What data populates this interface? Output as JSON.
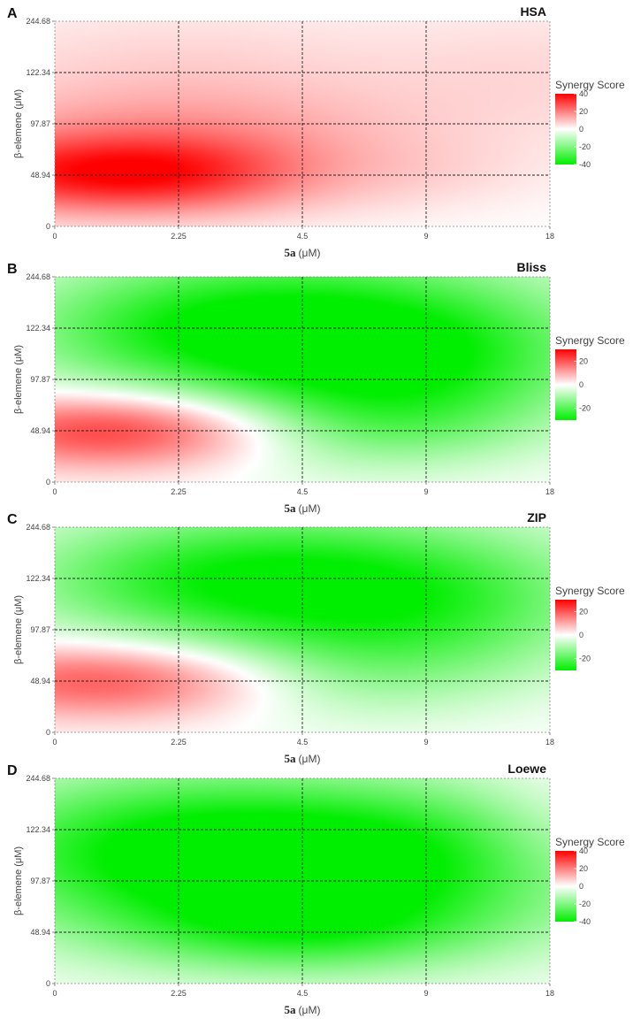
{
  "chart_data": [
    {
      "type": "heatmap",
      "panel_label": "A",
      "title": "HSA",
      "xlabel": "5a",
      "xlabel_unit": "(μM)",
      "ylabel": "β-elemene (μM)",
      "x_ticks": [
        "0",
        "2.25",
        "4.5",
        "9",
        "18"
      ],
      "y_ticks": [
        "0",
        "48.94",
        "97.87",
        "122.34",
        "244.68"
      ],
      "legend": {
        "title": "Synergy Score",
        "ticks": [
          "40",
          "20",
          "0",
          "-20",
          "-40"
        ],
        "range": [
          -40,
          40
        ],
        "colors": {
          "high": "#ff0000",
          "mid": "#ffffff",
          "low": "#00ee00"
        }
      },
      "grid": true,
      "peaks": [
        {
          "x": "2.25",
          "y": "48.94",
          "score": 34,
          "spread_x": 1.3,
          "spread_y": 0.55
        },
        {
          "x": "0",
          "y": "48.94",
          "score": 10,
          "spread_x": 1.0,
          "spread_y": 0.6
        },
        {
          "x": "2.25",
          "y": "122.34",
          "score": 7,
          "spread_x": 1.5,
          "spread_y": 1.0
        },
        {
          "x": "2.25",
          "y": "97.87",
          "score": 8,
          "spread_x": 1.5,
          "spread_y": 0.6
        },
        {
          "x": "18",
          "y": "122.34",
          "score": 5,
          "spread_x": 0.9,
          "spread_y": 1.0
        },
        {
          "x": "4.5",
          "y": "48.94",
          "score": -10,
          "spread_x": 0.7,
          "spread_y": 0.5
        }
      ]
    },
    {
      "type": "heatmap",
      "panel_label": "B",
      "title": "Bliss",
      "xlabel": "5a",
      "xlabel_unit": "(μM)",
      "ylabel": "β-elemene (μM)",
      "x_ticks": [
        "0",
        "2.25",
        "4.5",
        "9",
        "18"
      ],
      "y_ticks": [
        "0",
        "48.94",
        "97.87",
        "122.34",
        "244.68"
      ],
      "legend": {
        "title": "Synergy Score",
        "ticks": [
          "20",
          "0",
          "-20"
        ],
        "range": [
          -30,
          30
        ],
        "colors": {
          "high": "#ff0000",
          "mid": "#ffffff",
          "low": "#00ee00"
        }
      },
      "grid": true,
      "peaks": [
        {
          "x": "2.25",
          "y": "48.94",
          "score": 26,
          "spread_x": 1.0,
          "spread_y": 0.55
        },
        {
          "x": "0",
          "y": "48.94",
          "score": 8,
          "spread_x": 0.8,
          "spread_y": 0.5
        },
        {
          "x": "4.5",
          "y": "122.34",
          "score": -30,
          "spread_x": 1.5,
          "spread_y": 1.1
        },
        {
          "x": "9",
          "y": "97.87",
          "score": -14,
          "spread_x": 1.0,
          "spread_y": 1.0
        },
        {
          "x": "4.5",
          "y": "48.94",
          "score": -16,
          "spread_x": 1.0,
          "spread_y": 0.6
        },
        {
          "x": "2.25",
          "y": "122.34",
          "score": -6,
          "spread_x": 0.9,
          "spread_y": 0.8
        }
      ]
    },
    {
      "type": "heatmap",
      "panel_label": "C",
      "title": "ZIP",
      "xlabel": "5a",
      "xlabel_unit": "(μM)",
      "ylabel": "β-elemene (μM)",
      "x_ticks": [
        "0",
        "2.25",
        "4.5",
        "9",
        "18"
      ],
      "y_ticks": [
        "0",
        "48.94",
        "97.87",
        "122.34",
        "244.68"
      ],
      "legend": {
        "title": "Synergy Score",
        "ticks": [
          "20",
          "0",
          "-20"
        ],
        "range": [
          -30,
          30
        ],
        "colors": {
          "high": "#ff0000",
          "mid": "#ffffff",
          "low": "#00ee00"
        }
      },
      "grid": true,
      "peaks": [
        {
          "x": "2.25",
          "y": "48.94",
          "score": 18,
          "spread_x": 1.1,
          "spread_y": 0.55
        },
        {
          "x": "0",
          "y": "48.94",
          "score": 8,
          "spread_x": 0.9,
          "spread_y": 0.5
        },
        {
          "x": "4.5",
          "y": "122.34",
          "score": -26,
          "spread_x": 1.5,
          "spread_y": 1.0
        },
        {
          "x": "9",
          "y": "97.87",
          "score": -12,
          "spread_x": 1.0,
          "spread_y": 1.0
        },
        {
          "x": "4.5",
          "y": "48.94",
          "score": -12,
          "spread_x": 0.9,
          "spread_y": 0.6
        },
        {
          "x": "2.25",
          "y": "122.34",
          "score": -6,
          "spread_x": 0.9,
          "spread_y": 0.8
        }
      ]
    },
    {
      "type": "heatmap",
      "panel_label": "D",
      "title": "Loewe",
      "xlabel": "5a",
      "xlabel_unit": "(μM)",
      "ylabel": "β-elemene (μM)",
      "x_ticks": [
        "0",
        "2.25",
        "4.5",
        "9",
        "18"
      ],
      "y_ticks": [
        "0",
        "48.94",
        "97.87",
        "122.34",
        "244.68"
      ],
      "legend": {
        "title": "Synergy Score",
        "ticks": [
          "40",
          "20",
          "0",
          "-20",
          "-40"
        ],
        "range": [
          -40,
          40
        ],
        "colors": {
          "high": "#ff0000",
          "mid": "#ffffff",
          "low": "#00ee00"
        }
      },
      "grid": true,
      "peaks": [
        {
          "x": "4.5",
          "y": "97.87",
          "score": -36,
          "spread_x": 1.7,
          "spread_y": 1.1
        },
        {
          "x": "2.25",
          "y": "122.34",
          "score": -24,
          "spread_x": 1.3,
          "spread_y": 1.0
        },
        {
          "x": "4.5",
          "y": "48.94",
          "score": -16,
          "spread_x": 1.0,
          "spread_y": 0.6
        },
        {
          "x": "9",
          "y": "122.34",
          "score": -10,
          "spread_x": 0.9,
          "spread_y": 0.9
        },
        {
          "x": "18",
          "y": "122.34",
          "score": 5,
          "spread_x": 0.5,
          "spread_y": 0.9
        }
      ]
    }
  ]
}
